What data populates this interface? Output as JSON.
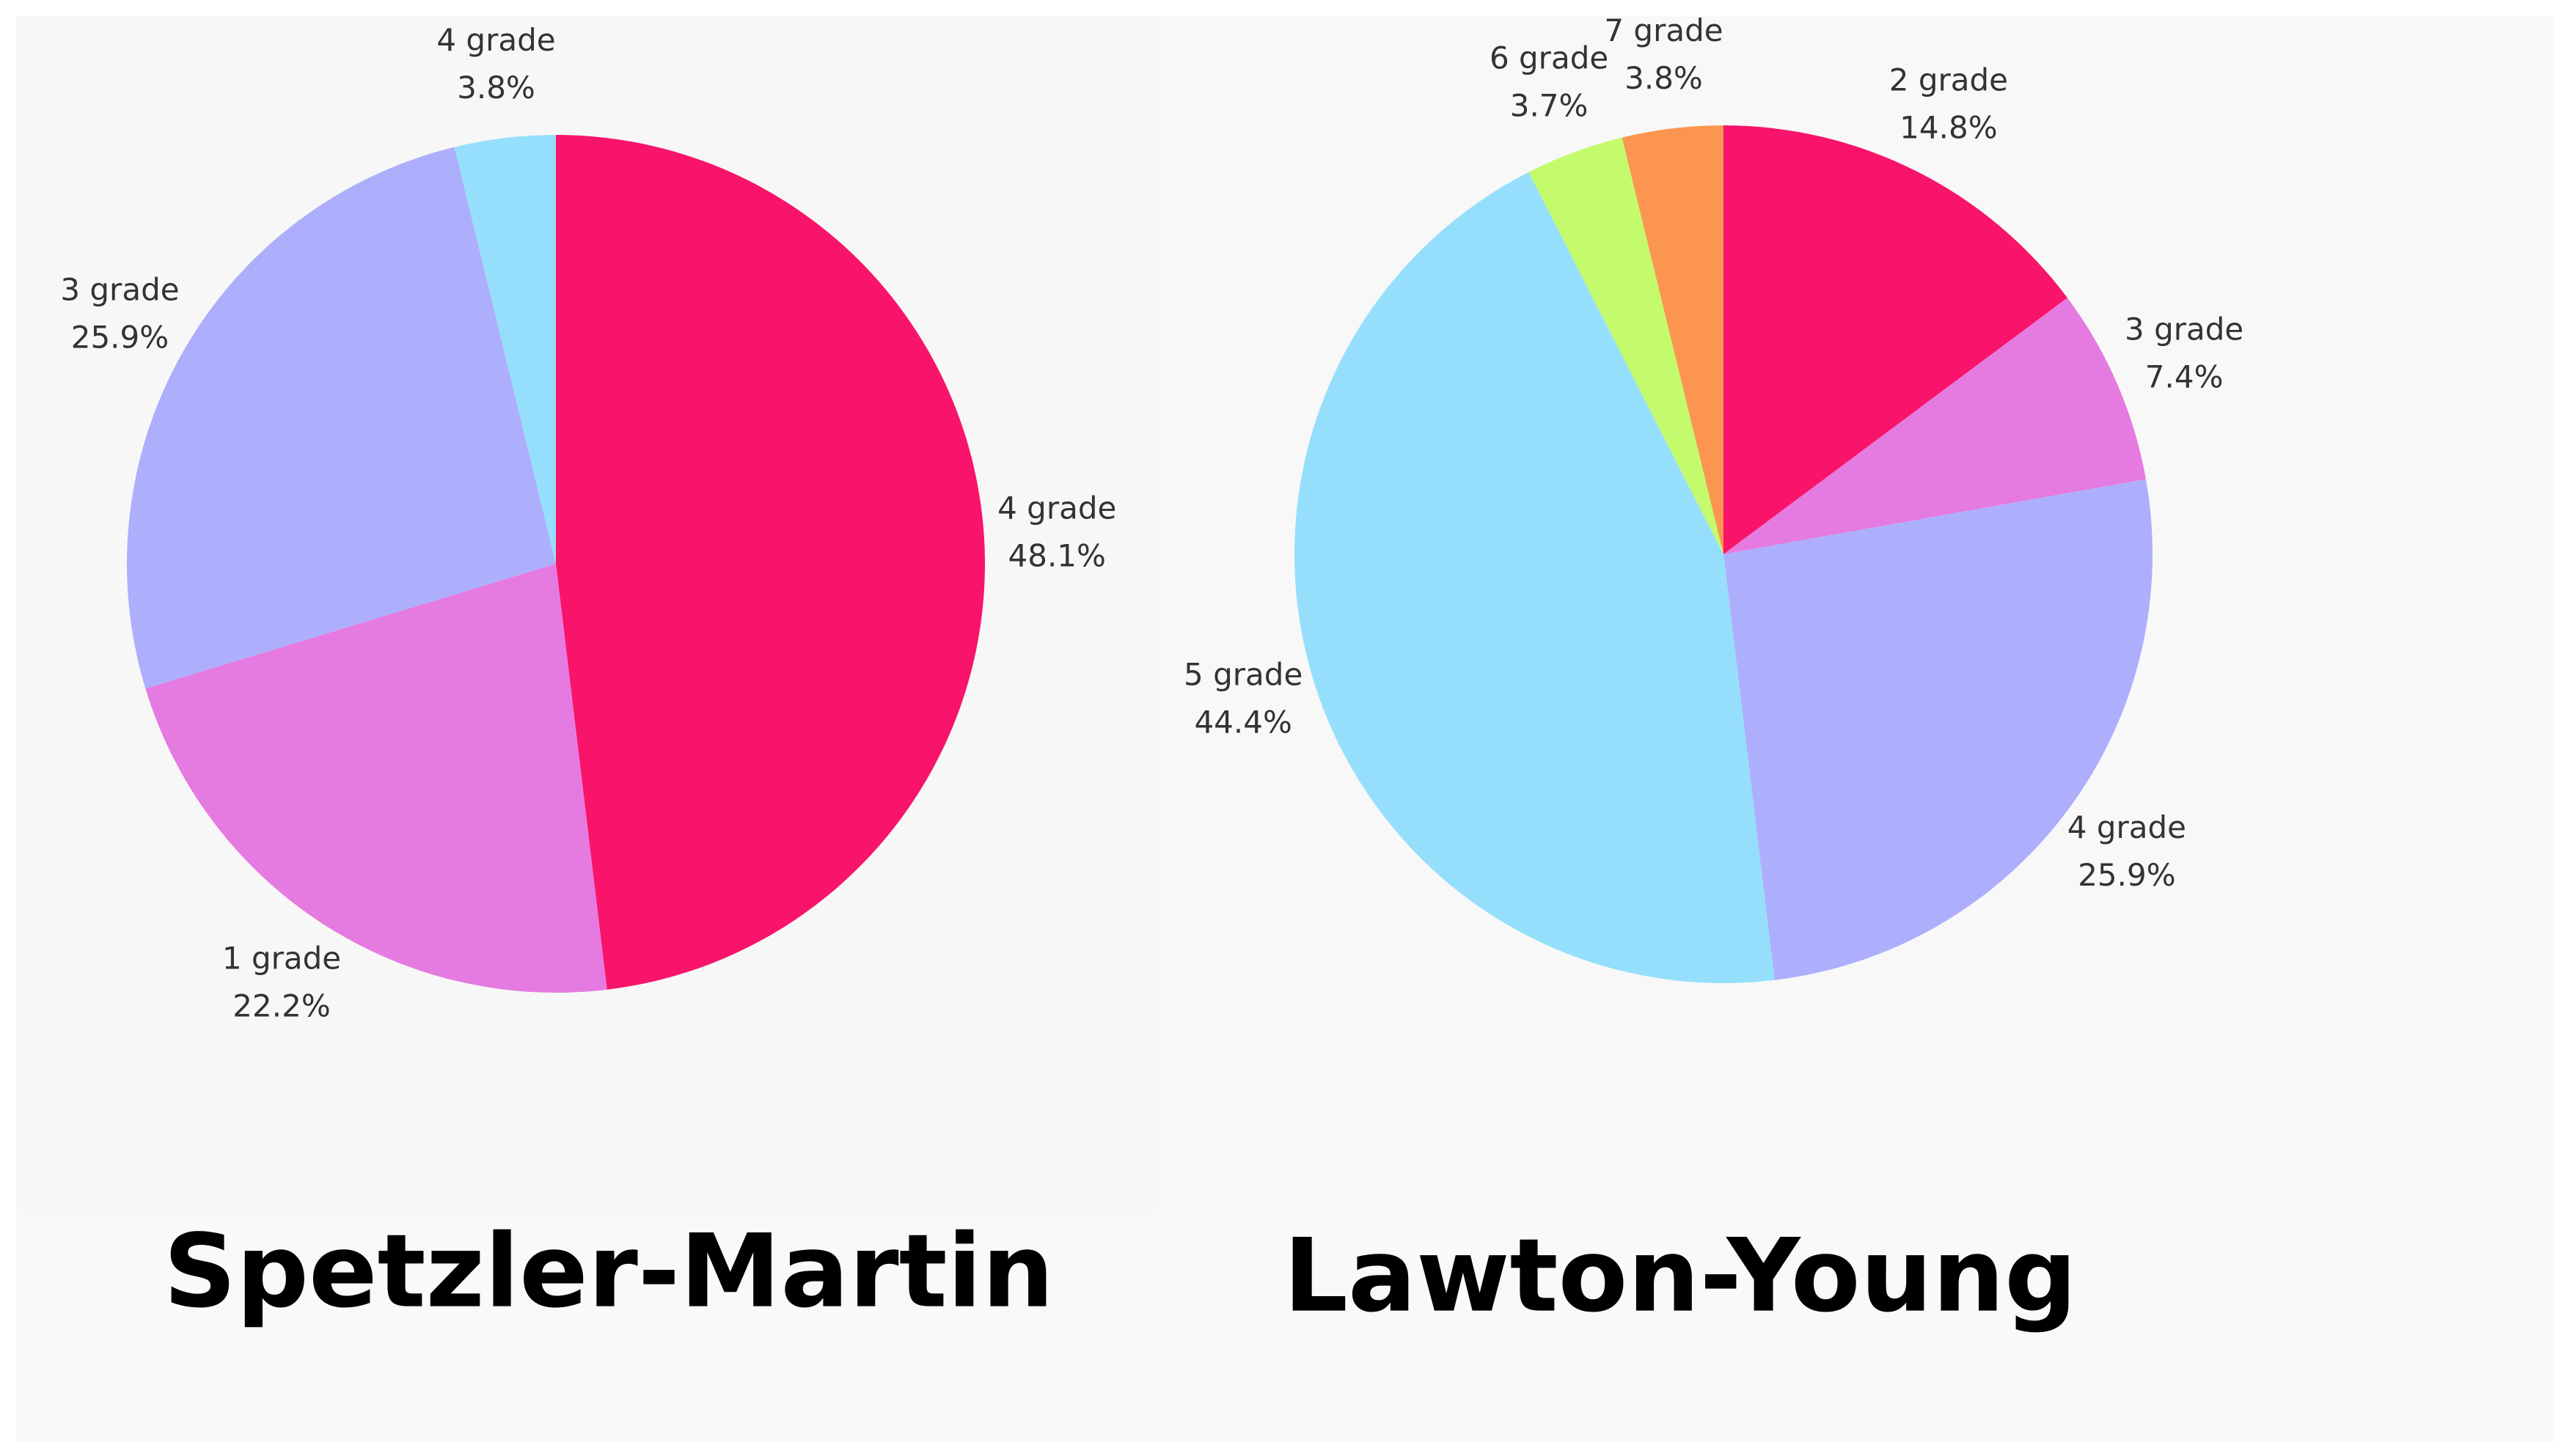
{
  "chart_data": [
    {
      "type": "pie",
      "title": "Spetzler-Martin",
      "categories": [
        "4 grade",
        "1 grade",
        "3 grade",
        "4 grade"
      ],
      "values": [
        48.1,
        22.2,
        25.9,
        3.8
      ],
      "value_labels": [
        "48.1%",
        "22.2%",
        "25.9%",
        "3.8%"
      ],
      "colors": [
        "#f8146a",
        "#e57ae0",
        "#adaffc",
        "#96dffc"
      ]
    },
    {
      "type": "pie",
      "title": "Lawton-Young",
      "categories": [
        "2 grade",
        "3 grade",
        "4 grade",
        "5 grade",
        "6 grade",
        "7 grade"
      ],
      "values": [
        14.8,
        7.4,
        25.9,
        44.4,
        3.7,
        3.8
      ],
      "value_labels": [
        "14.8%",
        "7.4%",
        "25.9%",
        "44.4%",
        "3.7%",
        "3.8%"
      ],
      "colors": [
        "#f8146a",
        "#e57ae0",
        "#adaffc",
        "#96dffc",
        "#c3fb6c",
        "#fc9550"
      ]
    }
  ]
}
